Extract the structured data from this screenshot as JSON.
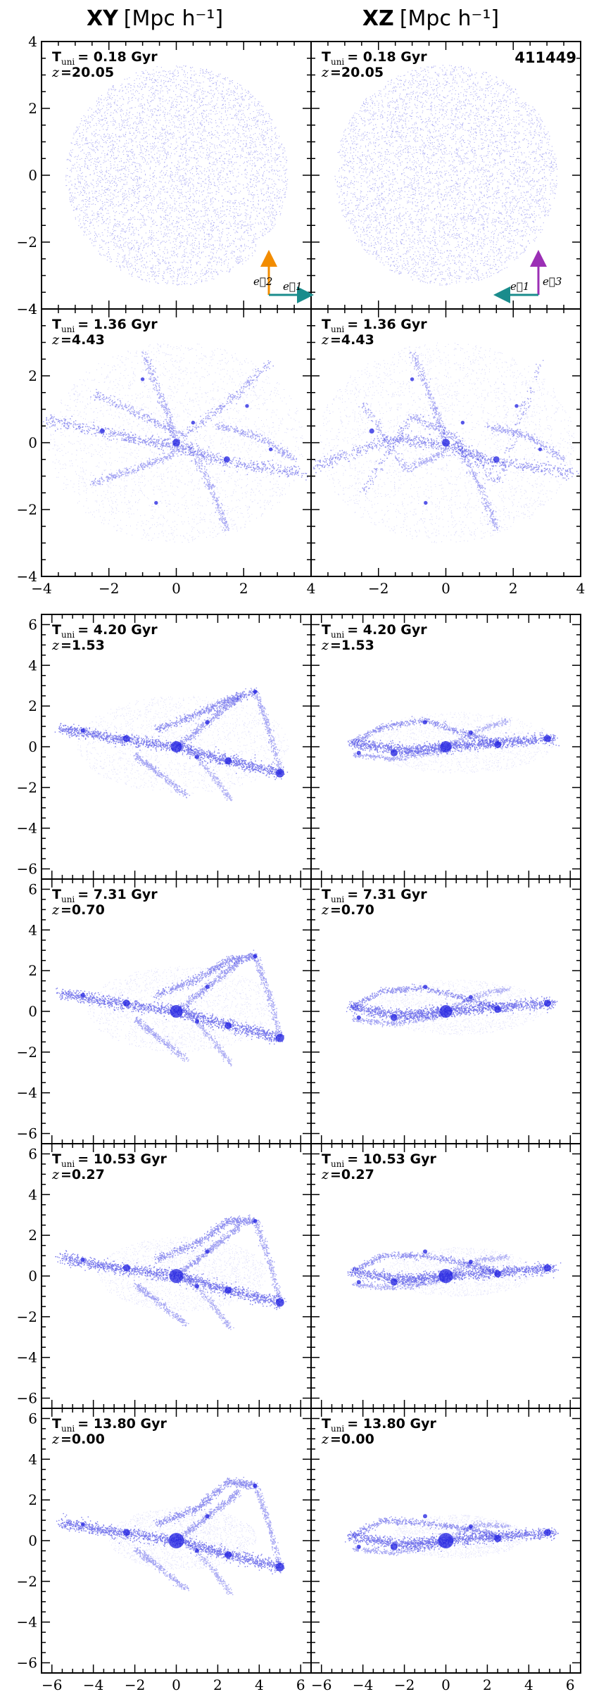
{
  "figure": {
    "halo_id": "411449",
    "column_titles": [
      {
        "plane": "XY",
        "units": "[Mpc h⁻¹]"
      },
      {
        "plane": "XZ",
        "units": "[Mpc h⁻¹]"
      }
    ],
    "axis_vectors": {
      "XY": {
        "vertical": "e⃗2",
        "horizontal": "e⃗1",
        "vertical_color": "#f28c00",
        "horizontal_color": "#1a8c8c"
      },
      "XZ": {
        "vertical": "e⃗3",
        "horizontal": "e⃗1",
        "vertical_color": "#9b2fb5",
        "horizontal_color": "#1a8c8c"
      }
    },
    "particle_color": "#1f1fe0"
  },
  "chart_data": [
    {
      "type": "scatter",
      "group": "top",
      "xlim": [
        -4,
        4
      ],
      "ylim": [
        -4,
        4
      ],
      "x_ticks": [
        "−4",
        "−2",
        "0",
        "2",
        "4"
      ],
      "y_ticks": [
        "4",
        "2",
        "0",
        "−2",
        "−4"
      ],
      "rows": [
        {
          "t_uni": "T_uni = 0.18 Gyr",
          "t_label": "T",
          "t_sub": "uni",
          "t_value": "= 0.18 Gyr",
          "z_label": "z",
          "z_value": "=20.05",
          "structure": "uniform sphere, radius ~3.3"
        },
        {
          "t_uni": "T_uni = 1.36 Gyr",
          "t_label": "T",
          "t_sub": "uni",
          "t_value": "= 1.36 Gyr",
          "z_label": "z",
          "z_value": "=4.43",
          "structure": "filamentary web, radius ~3.8"
        }
      ]
    },
    {
      "type": "scatter",
      "group": "bottom",
      "xlim": [
        -6.5,
        6.5
      ],
      "ylim": [
        -6.5,
        6.5
      ],
      "x_ticks": [
        "−6",
        "−4",
        "−2",
        "0",
        "2",
        "4",
        "6"
      ],
      "y_ticks": [
        "6",
        "4",
        "2",
        "0",
        "−2",
        "−4",
        "−6"
      ],
      "rows": [
        {
          "t_label": "T",
          "t_sub": "uni",
          "t_value": "= 4.20 Gyr",
          "z_label": "z",
          "z_value": "=1.53"
        },
        {
          "t_label": "T",
          "t_sub": "uni",
          "t_value": "= 7.31 Gyr",
          "z_label": "z",
          "z_value": "=0.70"
        },
        {
          "t_label": "T",
          "t_sub": "uni",
          "t_value": "= 10.53 Gyr",
          "z_label": "z",
          "z_value": "=0.27"
        },
        {
          "t_label": "T",
          "t_sub": "uni",
          "t_value": "= 13.80 Gyr",
          "z_label": "z",
          "z_value": "=0.00"
        }
      ]
    }
  ]
}
